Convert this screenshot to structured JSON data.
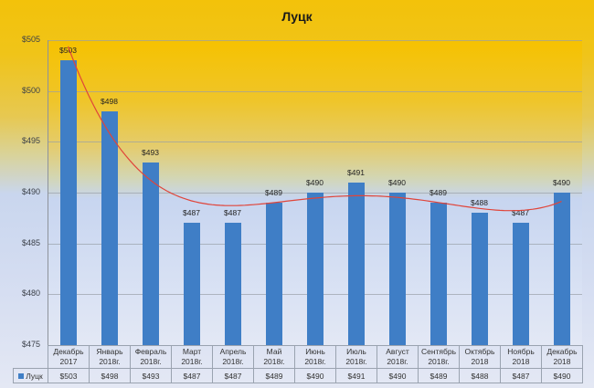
{
  "chart_data": {
    "type": "bar",
    "title": "Луцк",
    "xlabel": "",
    "ylabel": "",
    "ylim": [
      475,
      505
    ],
    "yticks": [
      "$475",
      "$480",
      "$485",
      "$490",
      "$495",
      "$500",
      "$505"
    ],
    "ytick_values": [
      475,
      480,
      485,
      490,
      495,
      500,
      505
    ],
    "grid": true,
    "legend_position": "data-table",
    "categories": [
      "Декабрь 2017",
      "Январь 2018г.",
      "Февраль 2018г.",
      "Март 2018г.",
      "Апрель 2018г.",
      "Май 2018г.",
      "Июнь 2018г.",
      "Июль 2018г.",
      "Август 2018г.",
      "Сентябрь 2018г.",
      "Октябрь 2018",
      "Ноябрь 2018",
      "Декабрь 2018"
    ],
    "category_lines": [
      [
        "Декабрь",
        "2017"
      ],
      [
        "Январь",
        "2018г."
      ],
      [
        "Февраль",
        "2018г."
      ],
      [
        "Март",
        "2018г."
      ],
      [
        "Апрель",
        "2018г."
      ],
      [
        "Май",
        "2018г."
      ],
      [
        "Июнь",
        "2018г."
      ],
      [
        "Июль",
        "2018г."
      ],
      [
        "Август",
        "2018г."
      ],
      [
        "Сентябрь",
        "2018г."
      ],
      [
        "Октябрь",
        "2018"
      ],
      [
        "Ноябрь",
        "2018"
      ],
      [
        "Декабрь",
        "2018"
      ]
    ],
    "series": [
      {
        "name": "Луцк",
        "values": [
          503,
          498,
          493,
          487,
          487,
          489,
          490,
          491,
          490,
          489,
          488,
          487,
          490
        ],
        "labels": [
          "$503",
          "$498",
          "$493",
          "$487",
          "$487",
          "$489",
          "$490",
          "$491",
          "$490",
          "$489",
          "$488",
          "$487",
          "$490"
        ],
        "color": "#3f7ec6"
      }
    ],
    "trendline": {
      "type": "polynomial",
      "color": "#e0453a"
    },
    "data_table": true
  },
  "colors": {
    "bar": "#3f7ec6",
    "trend": "#e0453a",
    "background_top": "#f3c20a",
    "background_bottom": "#e4e8f4"
  }
}
